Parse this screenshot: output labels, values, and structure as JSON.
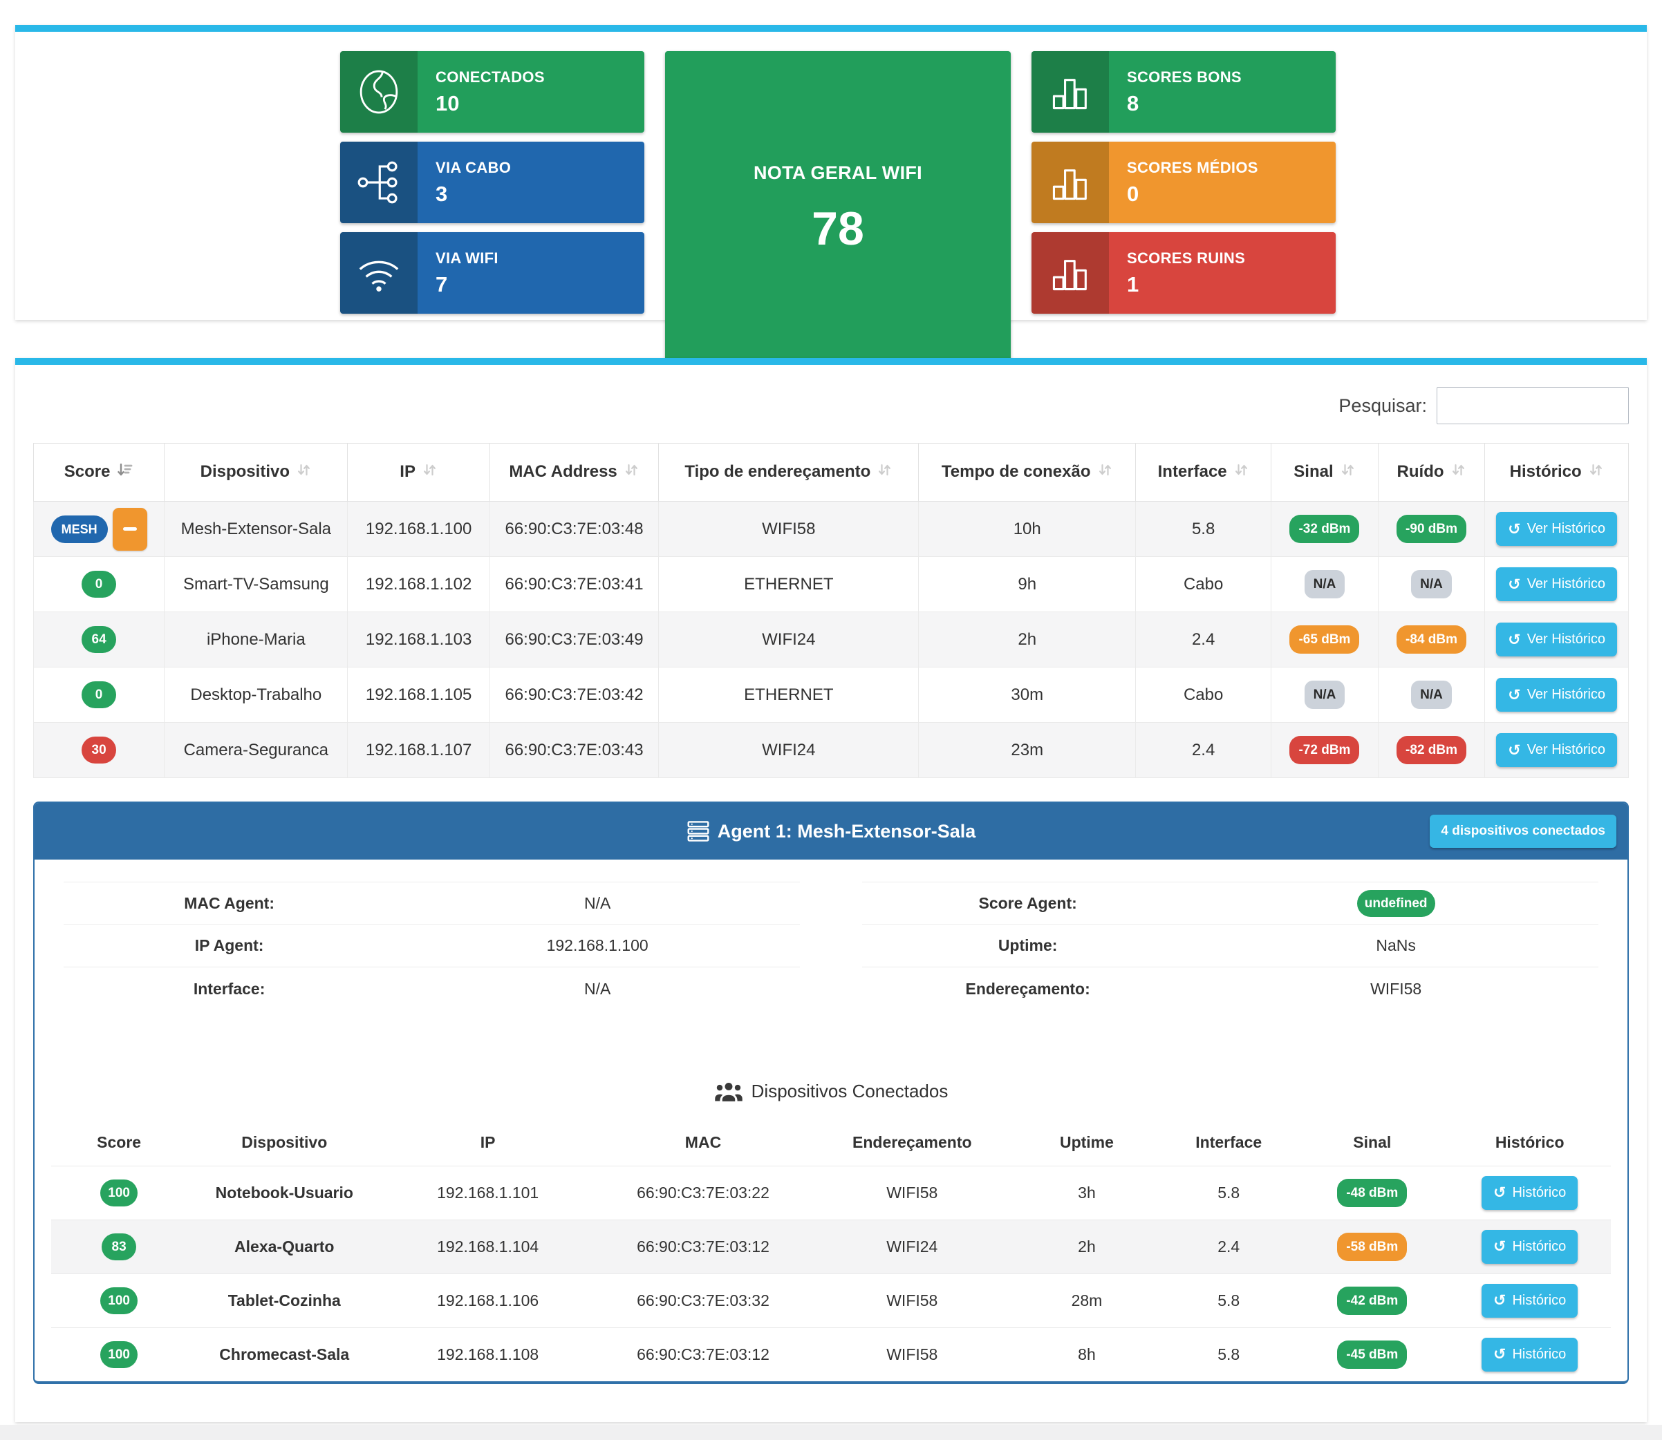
{
  "colors": {
    "cyan": "#29b8e8",
    "green": "#229e5b",
    "green_dark": "#1d7f48",
    "blue": "#2067ae",
    "blue_dark": "#1a5181",
    "orange": "#f0962e",
    "orange_dark": "#c07b20",
    "red": "#d8453e",
    "red_dark": "#ae3a30",
    "header_blue": "#2e6da4",
    "action_blue": "#34b7e5",
    "badge_green": "#27a35e",
    "badge_gray": "#ccd2da"
  },
  "summary": {
    "left_cards": [
      {
        "icon": "globe-icon",
        "label": "CONECTADOS",
        "value": "10",
        "color": "green"
      },
      {
        "icon": "sitemap-icon",
        "label": "VIA CABO",
        "value": "3",
        "color": "blue"
      },
      {
        "icon": "wifi-icon",
        "label": "VIA WIFI",
        "value": "7",
        "color": "blue"
      }
    ],
    "center_card": {
      "label": "NOTA GERAL WIFI",
      "value": "78"
    },
    "right_cards": [
      {
        "icon": "bar-chart-icon",
        "label": "SCORES BONS",
        "value": "8",
        "color": "green"
      },
      {
        "icon": "bar-chart-icon",
        "label": "SCORES MÉDIOS",
        "value": "0",
        "color": "orange"
      },
      {
        "icon": "bar-chart-icon",
        "label": "SCORES RUINS",
        "value": "1",
        "color": "red"
      }
    ]
  },
  "search": {
    "label": "Pesquisar:",
    "value": ""
  },
  "devices_table": {
    "headers": [
      {
        "label": "Score",
        "sort": "active"
      },
      {
        "label": "Dispositivo",
        "sort": "default"
      },
      {
        "label": "IP",
        "sort": "default"
      },
      {
        "label": "MAC Address",
        "sort": "default"
      },
      {
        "label": "Tipo de endereçamento",
        "sort": "default"
      },
      {
        "label": "Tempo de conexão",
        "sort": "default"
      },
      {
        "label": "Interface",
        "sort": "default"
      },
      {
        "label": "Sinal",
        "sort": "default"
      },
      {
        "label": "Ruído",
        "sort": "default"
      },
      {
        "label": "Histórico",
        "sort": "default"
      }
    ],
    "rows": [
      {
        "score": {
          "type": "mesh",
          "label": "MESH"
        },
        "device": "Mesh-Extensor-Sala",
        "ip": "192.168.1.100",
        "mac": "66:90:C3:7E:03:48",
        "addressing": "WIFI58",
        "uptime": "10h",
        "interface": "5.8",
        "signal": {
          "label": "-32 dBm",
          "color": "green"
        },
        "noise": {
          "label": "-90 dBm",
          "color": "green"
        },
        "history_label": "Ver Histórico"
      },
      {
        "score": {
          "type": "badge",
          "label": "0",
          "color": "green"
        },
        "device": "Smart-TV-Samsung",
        "ip": "192.168.1.102",
        "mac": "66:90:C3:7E:03:41",
        "addressing": "ETHERNET",
        "uptime": "9h",
        "interface": "Cabo",
        "signal": {
          "label": "N/A",
          "color": "gray"
        },
        "noise": {
          "label": "N/A",
          "color": "gray"
        },
        "history_label": "Ver Histórico"
      },
      {
        "score": {
          "type": "badge",
          "label": "64",
          "color": "green"
        },
        "device": "iPhone-Maria",
        "ip": "192.168.1.103",
        "mac": "66:90:C3:7E:03:49",
        "addressing": "WIFI24",
        "uptime": "2h",
        "interface": "2.4",
        "signal": {
          "label": "-65 dBm",
          "color": "orange"
        },
        "noise": {
          "label": "-84 dBm",
          "color": "orange"
        },
        "history_label": "Ver Histórico"
      },
      {
        "score": {
          "type": "badge",
          "label": "0",
          "color": "green"
        },
        "device": "Desktop-Trabalho",
        "ip": "192.168.1.105",
        "mac": "66:90:C3:7E:03:42",
        "addressing": "ETHERNET",
        "uptime": "30m",
        "interface": "Cabo",
        "signal": {
          "label": "N/A",
          "color": "gray"
        },
        "noise": {
          "label": "N/A",
          "color": "gray"
        },
        "history_label": "Ver Histórico"
      },
      {
        "score": {
          "type": "badge",
          "label": "30",
          "color": "red"
        },
        "device": "Camera-Seguranca",
        "ip": "192.168.1.107",
        "mac": "66:90:C3:7E:03:43",
        "addressing": "WIFI24",
        "uptime": "23m",
        "interface": "2.4",
        "signal": {
          "label": "-72 dBm",
          "color": "red"
        },
        "noise": {
          "label": "-82 dBm",
          "color": "red"
        },
        "history_label": "Ver Histórico"
      }
    ]
  },
  "agent_panel": {
    "icon": "server-icon",
    "title": "Agent 1: Mesh-Extensor-Sala",
    "badge": "4 dispositivos conectados",
    "details_left": [
      {
        "label": "MAC Agent:",
        "value": "N/A"
      },
      {
        "label": "IP Agent:",
        "value": "192.168.1.100"
      },
      {
        "label": "Interface:",
        "value": "N/A"
      }
    ],
    "details_right": [
      {
        "label": "Score Agent:",
        "value": "undefined",
        "badge": "green"
      },
      {
        "label": "Uptime:",
        "value": "NaNs"
      },
      {
        "label": "Endereçamento:",
        "value": "WIFI58"
      }
    ],
    "connected_section": {
      "icon": "users-icon",
      "title": "Dispositivos Conectados",
      "headers": [
        "Score",
        "Dispositivo",
        "IP",
        "MAC",
        "Endereçamento",
        "Uptime",
        "Interface",
        "Sinal",
        "Histórico"
      ],
      "rows": [
        {
          "score": {
            "label": "100",
            "color": "green"
          },
          "device": "Notebook-Usuario",
          "ip": "192.168.1.101",
          "mac": "66:90:C3:7E:03:22",
          "addressing": "WIFI58",
          "uptime": "3h",
          "interface": "5.8",
          "signal": {
            "label": "-48 dBm",
            "color": "green"
          },
          "history_label": "Histórico"
        },
        {
          "score": {
            "label": "83",
            "color": "green"
          },
          "device": "Alexa-Quarto",
          "ip": "192.168.1.104",
          "mac": "66:90:C3:7E:03:12",
          "addressing": "WIFI24",
          "uptime": "2h",
          "interface": "2.4",
          "signal": {
            "label": "-58 dBm",
            "color": "orange"
          },
          "history_label": "Histórico"
        },
        {
          "score": {
            "label": "100",
            "color": "green"
          },
          "device": "Tablet-Cozinha",
          "ip": "192.168.1.106",
          "mac": "66:90:C3:7E:03:32",
          "addressing": "WIFI58",
          "uptime": "28m",
          "interface": "5.8",
          "signal": {
            "label": "-42 dBm",
            "color": "green"
          },
          "history_label": "Histórico"
        },
        {
          "score": {
            "label": "100",
            "color": "green"
          },
          "device": "Chromecast-Sala",
          "ip": "192.168.1.108",
          "mac": "66:90:C3:7E:03:12",
          "addressing": "WIFI58",
          "uptime": "8h",
          "interface": "5.8",
          "signal": {
            "label": "-45 dBm",
            "color": "green"
          },
          "history_label": "Histórico"
        }
      ]
    }
  }
}
